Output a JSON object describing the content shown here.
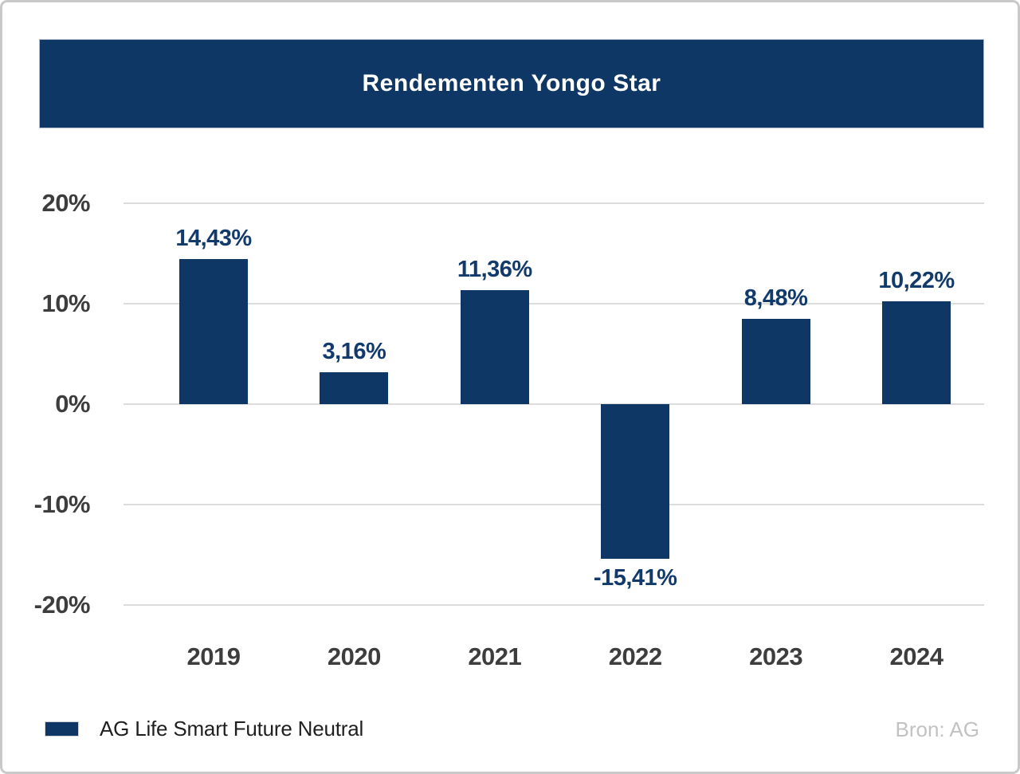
{
  "card": {
    "title": "Rendementen Yongo Star"
  },
  "legend": {
    "label": "AG Life Smart Future Neutral",
    "source": "Bron: AG"
  },
  "colors": {
    "navy": "#0E3765",
    "label_navy": "#123A6B",
    "tick_gray": "#3D3D3D",
    "gridline": "#DCDCDC",
    "source_gray": "#C2C2C2"
  },
  "chart_data": {
    "type": "bar",
    "title": "Rendementen Yongo Star",
    "categories": [
      "2019",
      "2020",
      "2021",
      "2022",
      "2023",
      "2024"
    ],
    "series": [
      {
        "name": "AG Life Smart Future Neutral",
        "values": [
          14.43,
          3.16,
          11.36,
          -15.41,
          8.48,
          10.22
        ],
        "value_labels": [
          "14,43%",
          "3,16%",
          "11,36%",
          "-15,41%",
          "8,48%",
          "10,22%"
        ]
      }
    ],
    "xlabel": "",
    "ylabel": "",
    "ylim": [
      -20,
      20
    ],
    "y_ticks": [
      20,
      10,
      0,
      -10,
      -20
    ],
    "y_tick_labels": [
      "20%",
      "10%",
      "0%",
      "-10%",
      "-20%"
    ],
    "grid": true,
    "legend_position": "bottom-left",
    "source": "Bron: AG",
    "bar_color": "#0E3765"
  }
}
